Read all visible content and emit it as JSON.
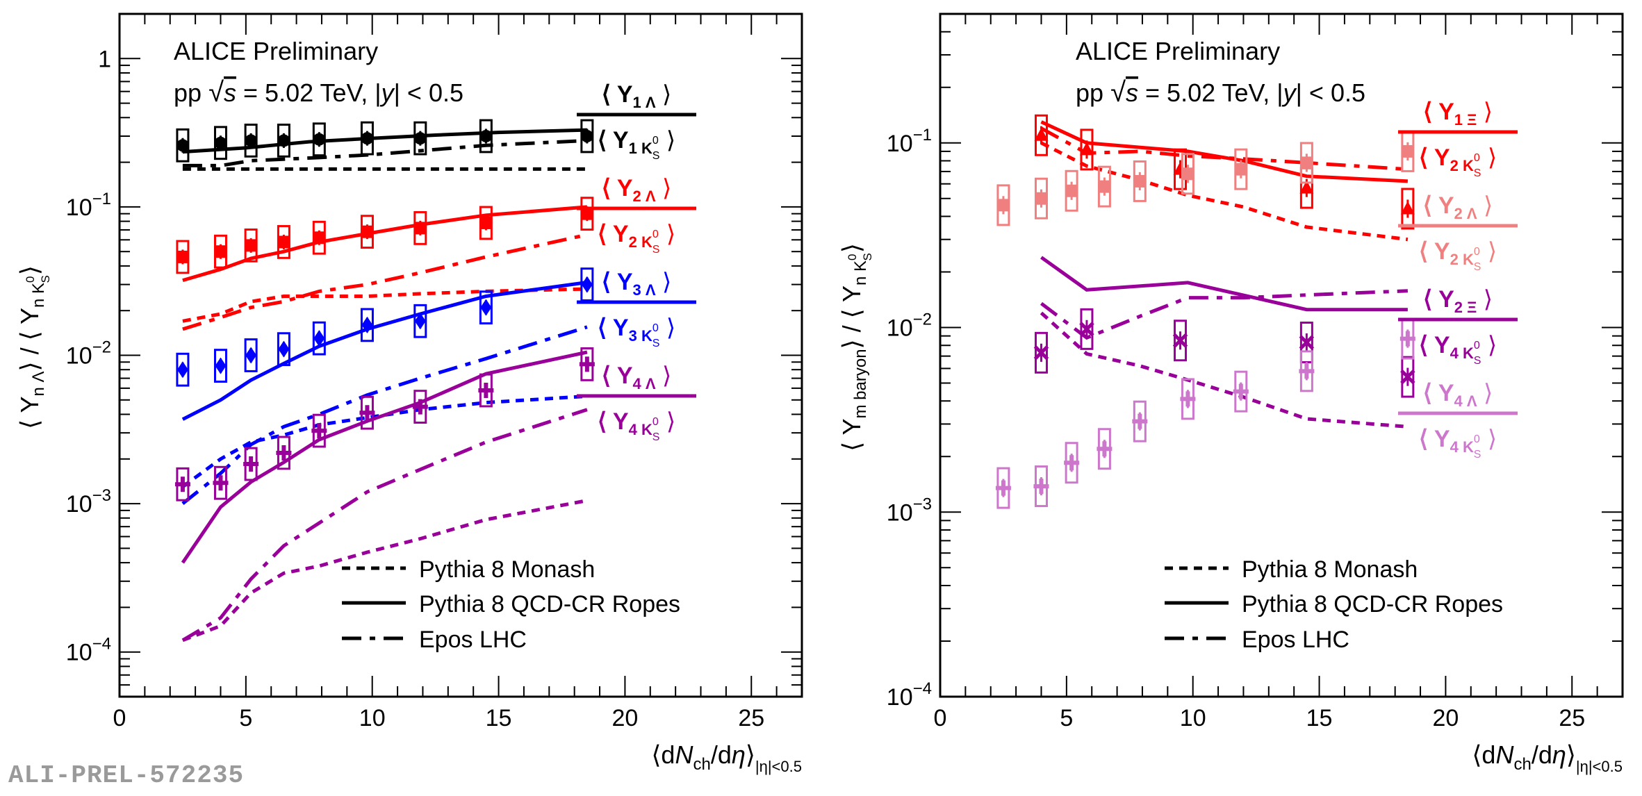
{
  "watermark": "ALI-PREL-572235",
  "colors": {
    "y1": "#000000",
    "y2": "#ff0000",
    "y3": "#0000ff",
    "y4": "#990099",
    "y2light": "#f08080",
    "y4light": "#cc77cc"
  },
  "chart_data": [
    {
      "type": "scatter",
      "panel": "left",
      "title": "ALICE Preliminary",
      "subtitle_parts": {
        "pre": "pp",
        "sqrt": "√",
        "s": "s",
        "energy": "= 5.02 TeV, |",
        "y": "y",
        "rap": "| < 0.5"
      },
      "yscale": "log",
      "ylim": [
        5e-05,
        2
      ],
      "xlim": [
        0,
        27
      ],
      "ylabel": "⟨ Y_nΛ ⟩ / ⟨ Y_nK0S ⟩",
      "ylabel_parts": {
        "open": "⟨ Y",
        "sub1": "n Λ",
        "mid": "⟩ / ⟨ Y",
        "sub2": "n K",
        "sub2sup": "0",
        "sub2sub": "S",
        "close": "⟩"
      },
      "xlabel": "⟨dN_ch/dη⟩_|η|<0.5",
      "xlabel_parts": {
        "open": "⟨d",
        "N": "N",
        "ch": "ch",
        "slash": "/d",
        "eta": "η",
        "close": "⟩",
        "sub": "|η|<0.5"
      },
      "xticks": [
        "0",
        "5",
        "10",
        "15",
        "20",
        "25"
      ],
      "yticks": [
        "10⁻⁴",
        "10⁻³",
        "10⁻²",
        "10⁻¹",
        "1"
      ],
      "ytick_parts": [
        {
          "base": "10",
          "exp": "−4"
        },
        {
          "base": "10",
          "exp": "−3"
        },
        {
          "base": "10",
          "exp": "−2"
        },
        {
          "base": "10",
          "exp": "−1"
        },
        {
          "base": "1",
          "exp": ""
        }
      ],
      "legend": {
        "monash": "Pythia 8 Monash",
        "ropes": "Pythia 8 QCD-CR Ropes",
        "epos": "Epos LHC"
      },
      "ratios": [
        {
          "num": "⟨ Y",
          "numsub": "1 Λ",
          "den": "⟨ Y",
          "densub": "1 K",
          "densup": "0",
          "densub2": "S",
          "close": "⟩",
          "color": "#000000"
        },
        {
          "num": "⟨ Y",
          "numsub": "2 Λ",
          "den": "⟨ Y",
          "densub": "2 K",
          "densup": "0",
          "densub2": "S",
          "close": "⟩",
          "color": "#ff0000"
        },
        {
          "num": "⟨ Y",
          "numsub": "3 Λ",
          "den": "⟨ Y",
          "densub": "3 K",
          "densup": "0",
          "densub2": "S",
          "close": "⟩",
          "color": "#0000ff"
        },
        {
          "num": "⟨ Y",
          "numsub": "4 Λ",
          "den": "⟨ Y",
          "densub": "4 K",
          "densup": "0",
          "densub2": "S",
          "close": "⟩",
          "color": "#990099"
        }
      ],
      "series": [
        {
          "name": "Y1Λ/Y1K0S",
          "color": "#000000",
          "marker": "circle",
          "x": [
            2.5,
            4.0,
            5.2,
            6.5,
            7.9,
            9.8,
            11.9,
            14.5,
            18.5
          ],
          "y": [
            0.26,
            0.27,
            0.28,
            0.28,
            0.285,
            0.29,
            0.29,
            0.3,
            0.3
          ],
          "ropes": [
            [
              2.5,
              0.235
            ],
            [
              5,
              0.25
            ],
            [
              7.5,
              0.275
            ],
            [
              10,
              0.29
            ],
            [
              12.5,
              0.305
            ],
            [
              15,
              0.318
            ],
            [
              18.5,
              0.33
            ]
          ],
          "monash": [
            [
              2.5,
              0.18
            ],
            [
              5,
              0.18
            ],
            [
              10,
              0.18
            ],
            [
              15,
              0.18
            ],
            [
              18.5,
              0.18
            ]
          ],
          "epos": [
            [
              2.5,
              0.19
            ],
            [
              4,
              0.19
            ],
            [
              5.2,
              0.205
            ],
            [
              7.9,
              0.215
            ],
            [
              10,
              0.225
            ],
            [
              12,
              0.24
            ],
            [
              14.5,
              0.26
            ],
            [
              18.5,
              0.28
            ]
          ]
        },
        {
          "name": "Y2Λ/Y2K0S",
          "color": "#ff0000",
          "marker": "square",
          "x": [
            2.5,
            4.0,
            5.2,
            6.5,
            7.9,
            9.8,
            11.9,
            14.5,
            18.5
          ],
          "y": [
            0.046,
            0.05,
            0.055,
            0.058,
            0.062,
            0.068,
            0.072,
            0.078,
            0.09
          ],
          "ropes": [
            [
              2.5,
              0.032
            ],
            [
              4,
              0.038
            ],
            [
              5.2,
              0.045
            ],
            [
              6.5,
              0.05
            ],
            [
              7.9,
              0.058
            ],
            [
              9.8,
              0.066
            ],
            [
              11.9,
              0.076
            ],
            [
              14.5,
              0.088
            ],
            [
              18.5,
              0.1
            ]
          ],
          "monash": [
            [
              2.5,
              0.017
            ],
            [
              4,
              0.019
            ],
            [
              5.2,
              0.023
            ],
            [
              6.5,
              0.025
            ],
            [
              9.8,
              0.025
            ],
            [
              11.9,
              0.026
            ],
            [
              14.5,
              0.027
            ],
            [
              18.5,
              0.028
            ]
          ],
          "epos": [
            [
              2.5,
              0.015
            ],
            [
              4,
              0.018
            ],
            [
              5.2,
              0.021
            ],
            [
              6.5,
              0.023
            ],
            [
              7.9,
              0.027
            ],
            [
              9.8,
              0.03
            ],
            [
              11.9,
              0.036
            ],
            [
              14.5,
              0.046
            ],
            [
              18.5,
              0.065
            ]
          ]
        },
        {
          "name": "Y3Λ/Y3K0S",
          "color": "#0000ff",
          "marker": "diamond",
          "x": [
            2.5,
            4.0,
            5.2,
            6.5,
            7.9,
            9.8,
            11.9,
            14.5,
            18.5
          ],
          "y": [
            0.008,
            0.0085,
            0.01,
            0.011,
            0.013,
            0.016,
            0.017,
            0.021,
            0.03
          ],
          "ropes": [
            [
              2.5,
              0.0037
            ],
            [
              4,
              0.005
            ],
            [
              5.2,
              0.0068
            ],
            [
              6.5,
              0.0088
            ],
            [
              7.9,
              0.0115
            ],
            [
              9.8,
              0.015
            ],
            [
              11.9,
              0.019
            ],
            [
              14.5,
              0.025
            ],
            [
              18.5,
              0.031
            ]
          ],
          "monash": [
            [
              2.5,
              0.0013
            ],
            [
              4,
              0.002
            ],
            [
              5.2,
              0.0026
            ],
            [
              6.5,
              0.0029
            ],
            [
              7.9,
              0.0034
            ],
            [
              9.8,
              0.0038
            ],
            [
              11.9,
              0.0043
            ],
            [
              14.5,
              0.0048
            ],
            [
              18.5,
              0.0053
            ]
          ],
          "epos": [
            [
              2.5,
              0.001
            ],
            [
              4,
              0.0016
            ],
            [
              5.2,
              0.0025
            ],
            [
              6.5,
              0.0033
            ],
            [
              7.9,
              0.004
            ],
            [
              9.8,
              0.0054
            ],
            [
              11.9,
              0.007
            ],
            [
              14.5,
              0.0095
            ],
            [
              18.5,
              0.0155
            ]
          ]
        },
        {
          "name": "Y4Λ/Y4K0S",
          "color": "#990099",
          "marker": "cross",
          "x": [
            2.5,
            4.0,
            5.2,
            6.5,
            7.9,
            9.8,
            11.9,
            14.5,
            18.5
          ],
          "y": [
            0.00135,
            0.00138,
            0.00185,
            0.0022,
            0.0031,
            0.0041,
            0.0045,
            0.0058,
            0.0087
          ],
          "ropes": [
            [
              2.5,
              0.0004
            ],
            [
              4,
              0.00095
            ],
            [
              5.2,
              0.0014
            ],
            [
              6.5,
              0.0019
            ],
            [
              7.9,
              0.0027
            ],
            [
              9.8,
              0.0036
            ],
            [
              11.9,
              0.0048
            ],
            [
              14.5,
              0.0075
            ],
            [
              18.5,
              0.0105
            ]
          ],
          "monash": [
            [
              2.5,
              0.00012
            ],
            [
              4,
              0.00015
            ],
            [
              5.2,
              0.00025
            ],
            [
              6.5,
              0.00034
            ],
            [
              7.9,
              0.00038
            ],
            [
              9.8,
              0.00047
            ],
            [
              11.9,
              0.00058
            ],
            [
              14.5,
              0.00078
            ],
            [
              18.5,
              0.00105
            ]
          ],
          "epos": [
            [
              2.5,
              0.00012
            ],
            [
              4,
              0.00017
            ],
            [
              5.2,
              0.00031
            ],
            [
              6.5,
              0.00052
            ],
            [
              7.9,
              0.00074
            ],
            [
              9.8,
              0.0012
            ],
            [
              11.9,
              0.0017
            ],
            [
              14.5,
              0.0026
            ],
            [
              18.5,
              0.0043
            ]
          ]
        }
      ]
    },
    {
      "type": "scatter",
      "panel": "right",
      "title": "ALICE Preliminary",
      "subtitle_parts": {
        "pre": "pp",
        "sqrt": "√",
        "s": "s",
        "energy": "= 5.02 TeV, |",
        "y": "y",
        "rap": "| < 0.5"
      },
      "yscale": "log",
      "ylim": [
        0.0001,
        0.5
      ],
      "xlim": [
        0,
        27
      ],
      "ylabel": "⟨ Y_m baryon ⟩ / ⟨ Y_nK0S ⟩",
      "ylabel_parts": {
        "open": "⟨ Y",
        "sub1": "m baryon",
        "mid": "⟩ / ⟨ Y",
        "sub2": "n K",
        "sub2sup": "0",
        "sub2sub": "S",
        "close": "⟩"
      },
      "xlabel": "⟨dN_ch/dη⟩_|η|<0.5",
      "xlabel_parts": {
        "open": "⟨d",
        "N": "N",
        "ch": "ch",
        "slash": "/d",
        "eta": "η",
        "close": "⟩",
        "sub": "|η|<0.5"
      },
      "xticks": [
        "0",
        "5",
        "10",
        "15",
        "20",
        "25"
      ],
      "yticks": [
        "10⁻⁴",
        "10⁻³",
        "10⁻²",
        "10⁻¹"
      ],
      "ytick_parts": [
        {
          "base": "10",
          "exp": "−4"
        },
        {
          "base": "10",
          "exp": "−3"
        },
        {
          "base": "10",
          "exp": "−2"
        },
        {
          "base": "10",
          "exp": "−1"
        }
      ],
      "legend": {
        "monash": "Pythia 8 Monash",
        "ropes": "Pythia 8 QCD-CR Ropes",
        "epos": "Epos LHC"
      },
      "ratios": [
        {
          "num": "⟨ Y",
          "numsub": "1 Ξ",
          "den": "⟨ Y",
          "densub": "2 K",
          "densup": "0",
          "densub2": "S",
          "close": "⟩",
          "color": "#ff0000"
        },
        {
          "num": "⟨ Y",
          "numsub": "2 Λ",
          "den": "⟨ Y",
          "densub": "2 K",
          "densup": "0",
          "densub2": "S",
          "close": "⟩",
          "color": "#f08080"
        },
        {
          "num": "⟨ Y",
          "numsub": "2 Ξ",
          "den": "⟨ Y",
          "densub": "4 K",
          "densup": "0",
          "densub2": "S",
          "close": "⟩",
          "color": "#990099"
        },
        {
          "num": "⟨ Y",
          "numsub": "4 Λ",
          "den": "⟨ Y",
          "densub": "4 K",
          "densup": "0",
          "densub2": "S",
          "close": "⟩",
          "color": "#cc77cc"
        }
      ],
      "series": [
        {
          "name": "Y1Ξ/Y2K0S",
          "color": "#ff0000",
          "marker": "triangle",
          "x": [
            4.0,
            5.8,
            9.5,
            14.5,
            18.5
          ],
          "y": [
            0.11,
            0.092,
            0.072,
            0.057,
            0.044
          ],
          "ropes": [
            [
              4,
              0.13
            ],
            [
              5.8,
              0.1
            ],
            [
              9.8,
              0.09
            ],
            [
              12,
              0.08
            ],
            [
              14.5,
              0.066
            ],
            [
              18.5,
              0.062
            ]
          ],
          "monash": [
            [
              4,
              0.1
            ],
            [
              5.8,
              0.075
            ],
            [
              7.9,
              0.063
            ],
            [
              9.8,
              0.052
            ],
            [
              12,
              0.045
            ],
            [
              14.5,
              0.035
            ],
            [
              18.5,
              0.03
            ]
          ],
          "epos": [
            [
              4,
              0.12
            ],
            [
              5.8,
              0.088
            ],
            [
              7.9,
              0.09
            ],
            [
              9.8,
              0.085
            ],
            [
              12,
              0.082
            ],
            [
              14.5,
              0.078
            ],
            [
              18.5,
              0.072
            ]
          ]
        },
        {
          "name": "Y2Λ/Y2K0S",
          "color": "#f08080",
          "marker": "square",
          "x": [
            2.5,
            4.0,
            5.2,
            6.5,
            7.9,
            9.8,
            11.9,
            14.5,
            18.5
          ],
          "y": [
            0.046,
            0.05,
            0.055,
            0.058,
            0.062,
            0.068,
            0.072,
            0.078,
            0.09
          ],
          "ropes": [],
          "monash": [],
          "epos": []
        },
        {
          "name": "Y2Ξ/Y4K0S",
          "color": "#990099",
          "marker": "x",
          "x": [
            4.0,
            5.8,
            9.5,
            14.5,
            18.5
          ],
          "y": [
            0.0073,
            0.0098,
            0.0085,
            0.0083,
            0.0054
          ],
          "ropes": [
            [
              4,
              0.024
            ],
            [
              5.8,
              0.016
            ],
            [
              9.8,
              0.0175
            ],
            [
              14.5,
              0.0125
            ],
            [
              18.5,
              0.0125
            ]
          ],
          "monash": [
            [
              4,
              0.012
            ],
            [
              5.8,
              0.0072
            ],
            [
              7.9,
              0.0062
            ],
            [
              9.8,
              0.0052
            ],
            [
              12,
              0.0042
            ],
            [
              14.5,
              0.0032
            ],
            [
              18.5,
              0.0029
            ]
          ],
          "epos": [
            [
              4,
              0.0135
            ],
            [
              5.8,
              0.0088
            ],
            [
              7.9,
              0.0115
            ],
            [
              9.8,
              0.0145
            ],
            [
              12,
              0.0145
            ],
            [
              14.5,
              0.015
            ],
            [
              18.5,
              0.0158
            ]
          ]
        },
        {
          "name": "Y4Λ/Y4K0S",
          "color": "#cc77cc",
          "marker": "cross",
          "x": [
            2.5,
            4.0,
            5.2,
            6.5,
            7.9,
            9.8,
            11.9,
            14.5,
            18.5
          ],
          "y": [
            0.00135,
            0.00138,
            0.00185,
            0.0022,
            0.0031,
            0.0041,
            0.0045,
            0.0058,
            0.0087
          ],
          "ropes": [],
          "monash": [],
          "epos": []
        }
      ]
    }
  ]
}
